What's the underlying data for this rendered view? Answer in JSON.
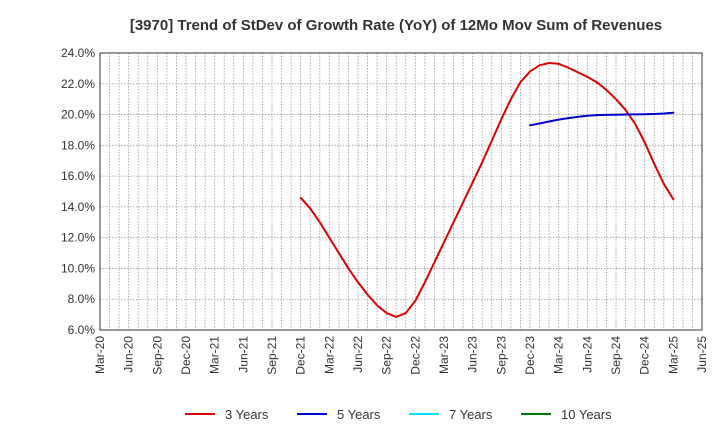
{
  "chart_data": {
    "type": "line",
    "title": "[3970]  Trend of StDev of Growth Rate (YoY) of 12Mo Mov Sum of Revenues",
    "xlabel": "",
    "ylabel": "",
    "ylim": [
      6.0,
      24.0
    ],
    "yticks": [
      6.0,
      8.0,
      10.0,
      12.0,
      14.0,
      16.0,
      18.0,
      20.0,
      22.0,
      24.0
    ],
    "ytick_labels": [
      "6.0%",
      "8.0%",
      "10.0%",
      "12.0%",
      "14.0%",
      "16.0%",
      "18.0%",
      "20.0%",
      "22.0%",
      "24.0%"
    ],
    "x_tick_labels": [
      "Mar-20",
      "Jun-20",
      "Sep-20",
      "Dec-20",
      "Mar-21",
      "Jun-21",
      "Sep-21",
      "Dec-21",
      "Mar-22",
      "Jun-22",
      "Sep-22",
      "Dec-22",
      "Mar-23",
      "Jun-23",
      "Sep-23",
      "Dec-23",
      "Mar-24",
      "Jun-24",
      "Sep-24",
      "Dec-24",
      "Mar-25",
      "Jun-25"
    ],
    "grid": true,
    "legend_position": "bottom",
    "series": [
      {
        "name": "3 Years",
        "color": "#dd0000",
        "points": [
          [
            21,
            14.6
          ],
          [
            22,
            13.9
          ],
          [
            23,
            13.0
          ],
          [
            24,
            12.0
          ],
          [
            25,
            11.0
          ],
          [
            26,
            10.0
          ],
          [
            27,
            9.1
          ],
          [
            28,
            8.3
          ],
          [
            29,
            7.6
          ],
          [
            30,
            7.1
          ],
          [
            31,
            6.85
          ],
          [
            32,
            7.1
          ],
          [
            33,
            7.9
          ],
          [
            34,
            9.1
          ],
          [
            35,
            10.4
          ],
          [
            36,
            11.7
          ],
          [
            37,
            13.0
          ],
          [
            38,
            14.3
          ],
          [
            39,
            15.6
          ],
          [
            40,
            16.9
          ],
          [
            41,
            18.3
          ],
          [
            42,
            19.7
          ],
          [
            43,
            21.0
          ],
          [
            44,
            22.1
          ],
          [
            45,
            22.8
          ],
          [
            46,
            23.2
          ],
          [
            47,
            23.35
          ],
          [
            48,
            23.3
          ],
          [
            49,
            23.05
          ],
          [
            50,
            22.75
          ],
          [
            51,
            22.45
          ],
          [
            52,
            22.1
          ],
          [
            53,
            21.6
          ],
          [
            54,
            21.0
          ],
          [
            55,
            20.3
          ],
          [
            56,
            19.4
          ],
          [
            57,
            18.2
          ],
          [
            58,
            16.8
          ],
          [
            59,
            15.5
          ],
          [
            60,
            14.5
          ]
        ]
      },
      {
        "name": "5 Years",
        "color": "#0000cc",
        "points": [
          [
            45,
            19.3
          ],
          [
            46,
            19.42
          ],
          [
            47,
            19.55
          ],
          [
            48,
            19.67
          ],
          [
            49,
            19.77
          ],
          [
            50,
            19.85
          ],
          [
            51,
            19.92
          ],
          [
            52,
            19.96
          ],
          [
            53,
            19.98
          ],
          [
            54,
            19.99
          ],
          [
            55,
            20.0
          ],
          [
            56,
            20.01
          ],
          [
            57,
            20.02
          ],
          [
            58,
            20.04
          ],
          [
            59,
            20.07
          ],
          [
            60,
            20.12
          ]
        ]
      },
      {
        "name": "7 Years",
        "color": "#00e5ff",
        "points": []
      },
      {
        "name": "10 Years",
        "color": "#007700",
        "points": []
      }
    ]
  }
}
